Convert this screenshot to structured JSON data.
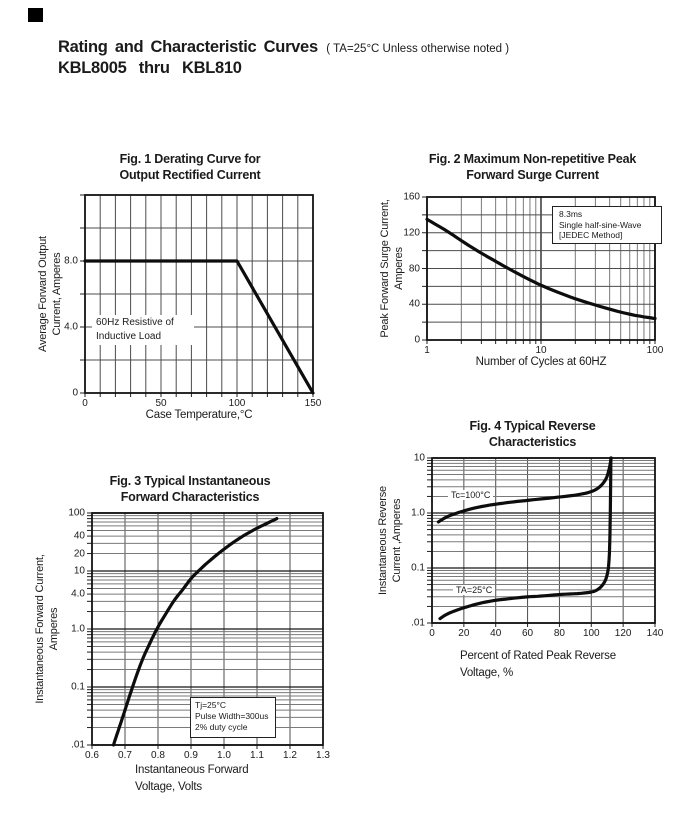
{
  "page": {
    "title": "Rating and Characteristic Curves",
    "title_note": "( TA=25°C Unless otherwise noted )",
    "subtitle": "KBL8005 thru KBL810"
  },
  "figures": [
    {
      "title1": "Fig. 1 Derating Curve for",
      "title2": "Output Rectified Current",
      "ylabel1": "Average Forward Output",
      "ylabel2": "Current, Amperes",
      "xlabel": "Case Temperature,°C",
      "annotation": {
        "lines": [
          "60Hz Resistive of",
          "Inductive Load"
        ]
      }
    },
    {
      "title1": "Fig. 2 Maximum Non-repetitive Peak",
      "title2": "Forward Surge Current",
      "ylabel1": "Peak Forward Surge Current,",
      "ylabel2": "Amperes",
      "xlabel": "Number of Cycles at 60HZ",
      "annotation": {
        "lines": [
          "8.3ms",
          "Single half-sine-Wave",
          "[JEDEC Method]"
        ]
      }
    },
    {
      "title1": "Fig. 3 Typical Instantaneous",
      "title2": "Forward Characteristics",
      "ylabel1": "Instantaneous Forward Current,",
      "ylabel2": "Amperes",
      "xlabel1": "Instantaneous Forward",
      "xlabel2": "Voltage, Volts",
      "annotation": {
        "lines": [
          "Tj=25°C",
          "Pulse Width=300us",
          "2% duty cycle"
        ]
      }
    },
    {
      "title1": "Fig. 4 Typical Reverse",
      "title2": "Characteristics",
      "ylabel1": "Instantaneous Reverse",
      "ylabel2": "Current ,Amperes",
      "xlabel1": "Percent of Rated Peak Reverse",
      "xlabel2": "Voltage, %"
    }
  ],
  "chart_data": [
    {
      "type": "line",
      "title": "Fig. 1 Derating Curve for Output Rectified Current",
      "xlabel": "Case Temperature,°C",
      "ylabel": "Average Forward Output Current, Amperes",
      "x_axis": {
        "scale": "linear",
        "min": 0,
        "max": 150,
        "grid_step": 10,
        "ticks": [
          {
            "v": 0,
            "label": "0"
          },
          {
            "v": 50,
            "label": "50"
          },
          {
            "v": 100,
            "label": "100"
          },
          {
            "v": 150,
            "label": "150"
          }
        ]
      },
      "y_axis": {
        "scale": "linear",
        "min": 0,
        "max": 12,
        "grid_step": 2,
        "ticks": [
          {
            "v": 0,
            "label": "0"
          },
          {
            "v": 4,
            "label": "4.0"
          },
          {
            "v": 8,
            "label": "8.0"
          }
        ]
      },
      "series": [
        {
          "name": "derating-curve",
          "points": [
            [
              0,
              8
            ],
            [
              100,
              8
            ],
            [
              150,
              0
            ]
          ]
        }
      ]
    },
    {
      "type": "line",
      "title": "Fig. 2 Maximum Non-repetitive Peak Forward Surge Current",
      "xlabel": "Number of Cycles at 60HZ",
      "ylabel": "Peak Forward Surge Current, Amperes",
      "x_axis": {
        "scale": "log",
        "min": 1,
        "max": 100,
        "ticks": [
          {
            "v": 1,
            "label": "1"
          },
          {
            "v": 10,
            "label": "10"
          },
          {
            "v": 100,
            "label": "100"
          }
        ]
      },
      "y_axis": {
        "scale": "linear",
        "min": 0,
        "max": 160,
        "grid_step": 20,
        "ticks": [
          {
            "v": 0,
            "label": "0"
          },
          {
            "v": 40,
            "label": "40"
          },
          {
            "v": 80,
            "label": "80"
          },
          {
            "v": 120,
            "label": "120"
          },
          {
            "v": 160,
            "label": "160"
          }
        ]
      },
      "series": [
        {
          "name": "surge-current",
          "points": [
            [
              1,
              135
            ],
            [
              1.5,
              122
            ],
            [
              2,
              111
            ],
            [
              3,
              97
            ],
            [
              4,
              88
            ],
            [
              5,
              81
            ],
            [
              7,
              71
            ],
            [
              10,
              61
            ],
            [
              15,
              52
            ],
            [
              20,
              46
            ],
            [
              30,
              39
            ],
            [
              50,
              31
            ],
            [
              70,
              27
            ],
            [
              100,
              24
            ]
          ]
        }
      ]
    },
    {
      "type": "line",
      "title": "Fig. 3 Typical Instantaneous Forward Characteristics",
      "xlabel": "Instantaneous Forward Voltage, Volts",
      "ylabel": "Instantaneous Forward Current, Amperes",
      "x_axis": {
        "scale": "linear",
        "min": 0.6,
        "max": 1.3,
        "grid_step": 0.1,
        "ticks": [
          {
            "v": 0.6,
            "label": "0.6"
          },
          {
            "v": 0.7,
            "label": "0.7"
          },
          {
            "v": 0.8,
            "label": "0.8"
          },
          {
            "v": 0.9,
            "label": "0.9"
          },
          {
            "v": 1.0,
            "label": "1.0"
          },
          {
            "v": 1.1,
            "label": "1.1"
          },
          {
            "v": 1.2,
            "label": "1.2"
          },
          {
            "v": 1.3,
            "label": "1.3"
          }
        ]
      },
      "y_axis": {
        "scale": "log",
        "min": 0.01,
        "max": 100,
        "ticks": [
          {
            "v": 100,
            "label": "100"
          },
          {
            "v": 40,
            "label": "40"
          },
          {
            "v": 20,
            "label": "20"
          },
          {
            "v": 10,
            "label": "10"
          },
          {
            "v": 4,
            "label": "4.0"
          },
          {
            "v": 1,
            "label": "1.0"
          },
          {
            "v": 0.1,
            "label": "0.1"
          },
          {
            "v": 0.01,
            "label": ".01"
          }
        ]
      },
      "series": [
        {
          "name": "forward-characteristic",
          "points": [
            [
              0.665,
              0.01
            ],
            [
              0.68,
              0.018
            ],
            [
              0.7,
              0.04
            ],
            [
              0.72,
              0.09
            ],
            [
              0.75,
              0.28
            ],
            [
              0.78,
              0.65
            ],
            [
              0.8,
              1.1
            ],
            [
              0.83,
              2.1
            ],
            [
              0.85,
              3.2
            ],
            [
              0.88,
              5.2
            ],
            [
              0.9,
              7.5
            ],
            [
              0.93,
              11
            ],
            [
              0.95,
              14
            ],
            [
              1.0,
              24
            ],
            [
              1.05,
              38
            ],
            [
              1.1,
              55
            ],
            [
              1.13,
              66
            ],
            [
              1.16,
              80
            ]
          ]
        }
      ]
    },
    {
      "type": "line",
      "title": "Fig. 4 Typical Reverse Characteristics",
      "xlabel": "Percent of Rated Peak Reverse Voltage, %",
      "ylabel": "Instantaneous Reverse Current ,Amperes",
      "x_axis": {
        "scale": "linear",
        "min": 0,
        "max": 140,
        "grid_step": 20,
        "ticks": [
          {
            "v": 0,
            "label": "0"
          },
          {
            "v": 20,
            "label": "20"
          },
          {
            "v": 40,
            "label": "40"
          },
          {
            "v": 60,
            "label": "60"
          },
          {
            "v": 80,
            "label": "80"
          },
          {
            "v": 100,
            "label": "100"
          },
          {
            "v": 120,
            "label": "120"
          },
          {
            "v": 140,
            "label": "140"
          }
        ]
      },
      "y_axis": {
        "scale": "log",
        "min": 0.01,
        "max": 10,
        "ticks": [
          {
            "v": 10,
            "label": "10"
          },
          {
            "v": 1,
            "label": "1.0"
          },
          {
            "v": 0.1,
            "label": "0.1"
          },
          {
            "v": 0.01,
            "label": ".01"
          }
        ]
      },
      "series": [
        {
          "name": "Tc=100°C",
          "points": [
            [
              4,
              0.69
            ],
            [
              10,
              0.88
            ],
            [
              20,
              1.1
            ],
            [
              30,
              1.3
            ],
            [
              40,
              1.45
            ],
            [
              50,
              1.58
            ],
            [
              60,
              1.7
            ],
            [
              70,
              1.82
            ],
            [
              80,
              1.95
            ],
            [
              90,
              2.1
            ],
            [
              100,
              2.4
            ],
            [
              105,
              2.9
            ],
            [
              108,
              3.6
            ],
            [
              110,
              4.6
            ],
            [
              111.5,
              6.8
            ],
            [
              112.5,
              10
            ]
          ]
        },
        {
          "name": "TA=25°C",
          "points": [
            [
              5,
              0.012
            ],
            [
              10,
              0.015
            ],
            [
              20,
              0.019
            ],
            [
              30,
              0.023
            ],
            [
              40,
              0.026
            ],
            [
              50,
              0.028
            ],
            [
              60,
              0.03
            ],
            [
              70,
              0.031
            ],
            [
              80,
              0.033
            ],
            [
              90,
              0.034
            ],
            [
              100,
              0.036
            ],
            [
              104,
              0.04
            ],
            [
              107,
              0.048
            ],
            [
              109,
              0.06
            ],
            [
              110.5,
              0.085
            ],
            [
              111.3,
              0.15
            ],
            [
              111.8,
              0.5
            ],
            [
              112.1,
              2.5
            ],
            [
              112.3,
              10
            ]
          ]
        }
      ]
    }
  ]
}
